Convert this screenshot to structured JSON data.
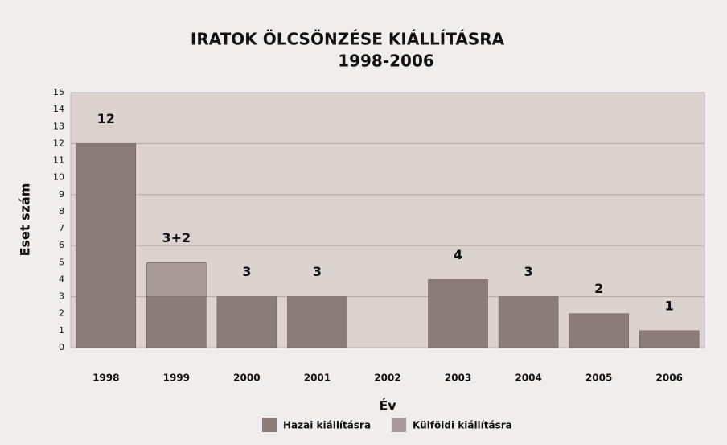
{
  "chart_data": {
    "type": "stacked-bar",
    "title": "IRATOK ÖLCSÖNZÉSE KIÁLLÍTÁSRA",
    "subtitle": "1998-2006",
    "ylabel": "Eset szám",
    "xlabel": "Év",
    "categories": [
      "1998",
      "1999",
      "2000",
      "2001",
      "2002",
      "2003",
      "2004",
      "2005",
      "2006"
    ],
    "series": [
      {
        "name": "Hazai kiállításra",
        "color": "#8b7c79",
        "values": [
          12,
          3,
          3,
          3,
          0,
          4,
          3,
          2,
          1
        ],
        "value_labels": [
          "12",
          "3+2",
          "3",
          "3",
          null,
          "4",
          "3",
          "2",
          "1"
        ]
      },
      {
        "name": "Külföldi kiállításra",
        "color": "#a89a99",
        "values": [
          0,
          2,
          0,
          0,
          0,
          0,
          0,
          0,
          0
        ]
      }
    ],
    "ylim": [
      0,
      15
    ],
    "yticks": [
      0,
      1,
      2,
      3,
      4,
      5,
      6,
      7,
      8,
      9,
      10,
      11,
      12,
      13,
      14,
      15
    ],
    "gridticks": [
      3,
      6,
      9,
      12,
      15
    ],
    "grid": true
  }
}
